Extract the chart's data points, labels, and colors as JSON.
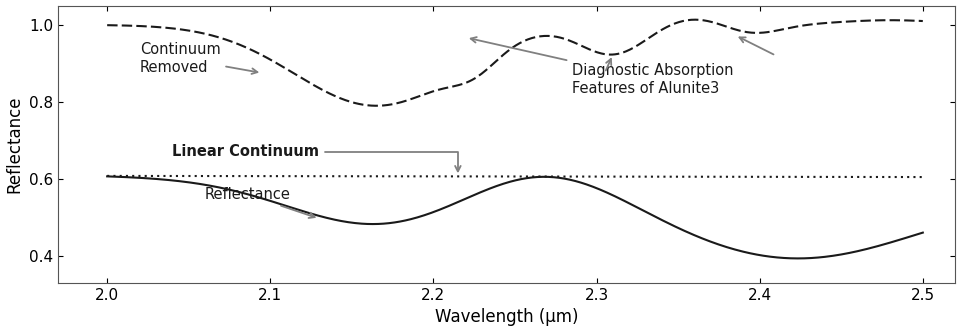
{
  "xlim": [
    1.97,
    2.52
  ],
  "ylim": [
    0.33,
    1.05
  ],
  "xlabel": "Wavelength (μm)",
  "ylabel": "Reflectance",
  "xticks": [
    2.0,
    2.1,
    2.2,
    2.3,
    2.4,
    2.5
  ],
  "yticks": [
    0.4,
    0.6,
    0.8,
    1.0
  ],
  "background_color": "#ffffff",
  "text_color": "#000000",
  "annotation_color": "#808080"
}
